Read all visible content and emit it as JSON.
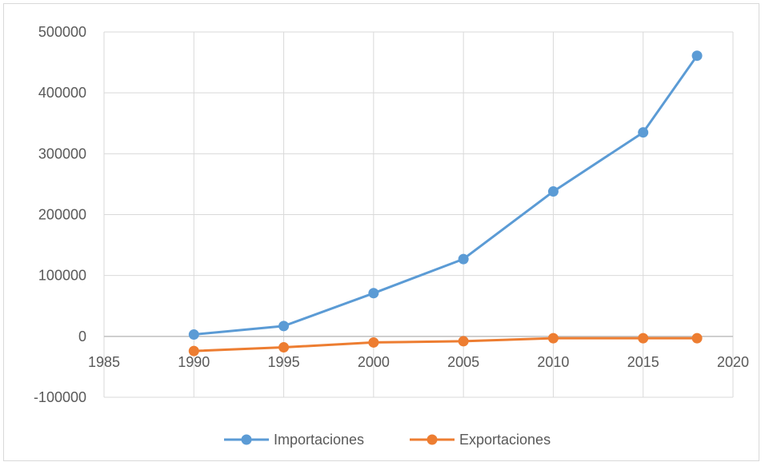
{
  "chart_data": {
    "type": "scatter",
    "x_ticks": [
      1985,
      1990,
      1995,
      2000,
      2005,
      2010,
      2015,
      2020
    ],
    "y_ticks": [
      -100000,
      0,
      100000,
      200000,
      300000,
      400000,
      500000
    ],
    "xlim": [
      1985,
      2020
    ],
    "ylim": [
      -100000,
      500000
    ],
    "grid": true,
    "legend_position": "bottom",
    "series": [
      {
        "name": "Importaciones",
        "color": "#5B9BD5",
        "x": [
          1990,
          1995,
          2000,
          2005,
          2010,
          2015,
          2018
        ],
        "y": [
          3000,
          17000,
          71000,
          127000,
          238000,
          335000,
          461000
        ]
      },
      {
        "name": "Exportaciones",
        "color": "#ED7D31",
        "x": [
          1990,
          1995,
          2000,
          2005,
          2010,
          2015,
          2018
        ],
        "y": [
          -24000,
          -18000,
          -10000,
          -8000,
          -3000,
          -3000,
          -3000
        ]
      }
    ]
  }
}
